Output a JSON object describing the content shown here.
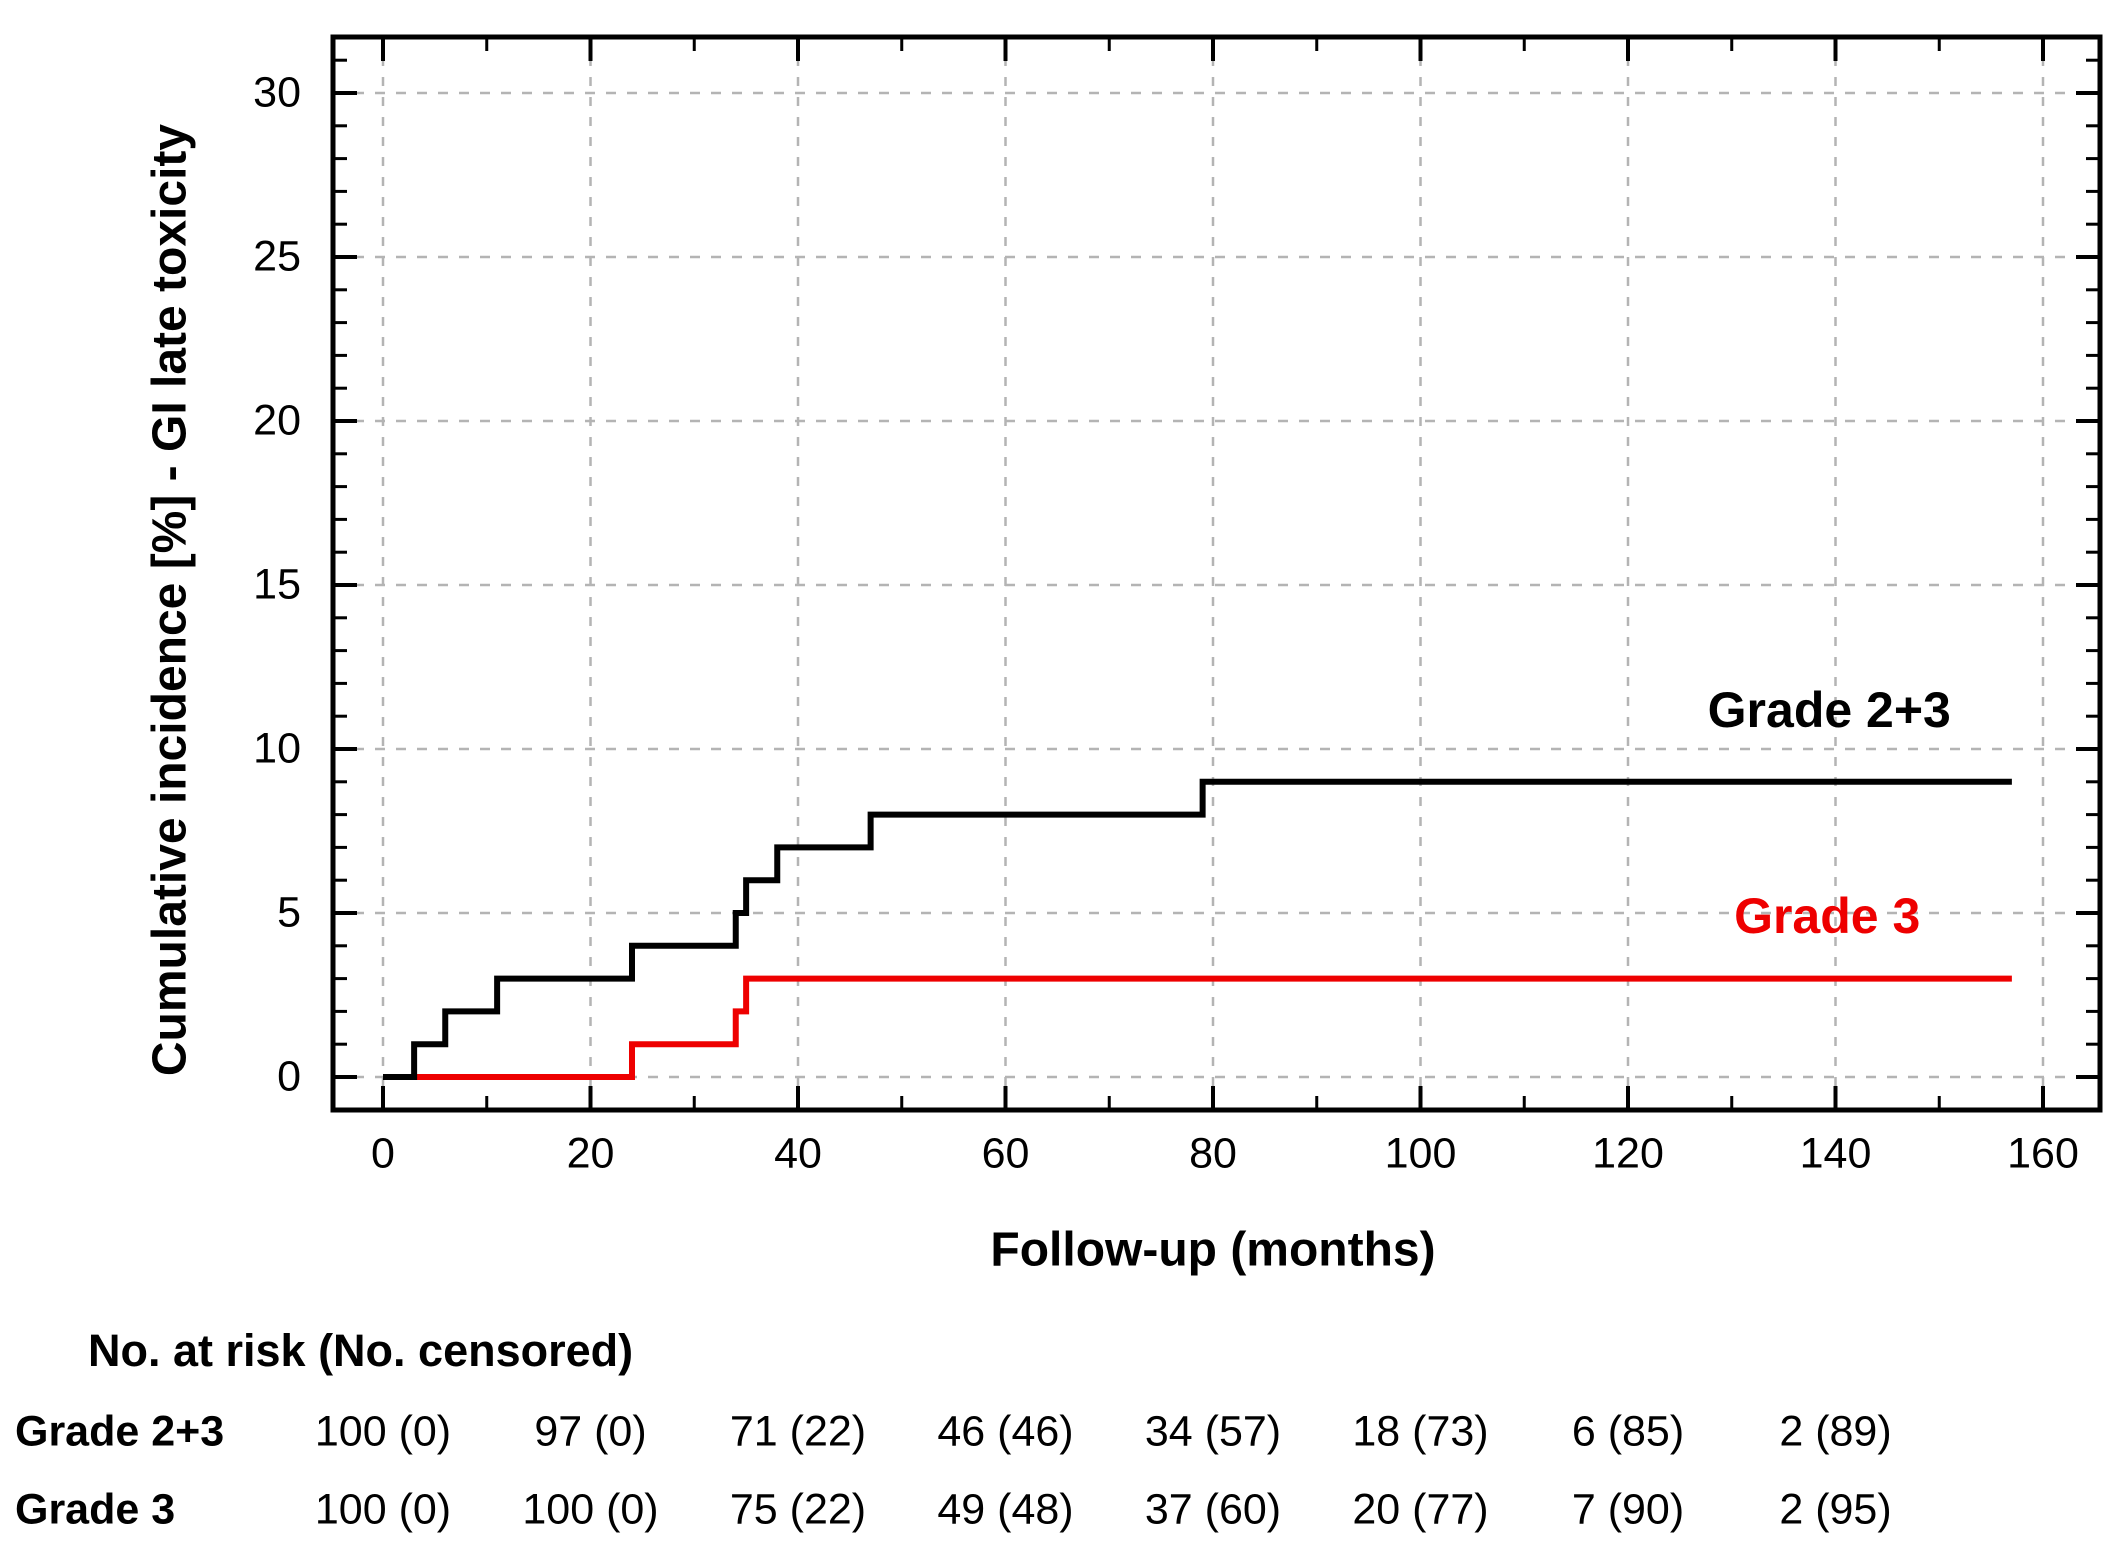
{
  "chart_data": {
    "type": "line",
    "subtype": "step-function-cumulative-incidence",
    "title": "",
    "xlabel": "Follow-up (months)",
    "ylabel": "Cumulative incidence [%] - GI late toxicity",
    "xlim": [
      -4.8,
      165.5
    ],
    "ylim": [
      -1.0,
      31.7
    ],
    "x_major_ticks": [
      0,
      20,
      40,
      60,
      80,
      100,
      120,
      140,
      160
    ],
    "x_minor_ticks": [
      10,
      30,
      50,
      70,
      90,
      110,
      130,
      150
    ],
    "y_major_ticks": [
      0,
      5,
      10,
      15,
      20,
      25,
      30
    ],
    "y_minor_step": 1,
    "grid": "major-dashed-both-axes",
    "grid_color": "#b4b4b4",
    "frame_color": "#000000",
    "legend_position": "labels-inside-plot-right",
    "series": [
      {
        "name": "Grade 2+3",
        "color": "#000000",
        "start": [
          0,
          0
        ],
        "events": [
          [
            3,
            1
          ],
          [
            6,
            2
          ],
          [
            11,
            3
          ],
          [
            24,
            4
          ],
          [
            34,
            5
          ],
          [
            35,
            6
          ],
          [
            38,
            7
          ],
          [
            47,
            8
          ],
          [
            79,
            9
          ]
        ],
        "end_x": 157,
        "final_value": 9,
        "label_pos": {
          "x": 139.4,
          "y": 11.2
        }
      },
      {
        "name": "Grade 3",
        "color": "#ee0000",
        "start": [
          0,
          0
        ],
        "events": [
          [
            24,
            1
          ],
          [
            34,
            2
          ],
          [
            35,
            3
          ]
        ],
        "end_x": 157,
        "final_value": 3,
        "label_pos": {
          "x": 139.2,
          "y": 4.9
        }
      }
    ],
    "risk_table": {
      "header": "No. at risk (No. censored)",
      "time_points": [
        0,
        20,
        40,
        60,
        80,
        100,
        120,
        140
      ],
      "rows": [
        {
          "label": "Grade 2+3",
          "values": [
            "100 (0)",
            "97 (0)",
            "71 (22)",
            "46 (46)",
            "34 (57)",
            "18 (73)",
            "6 (85)",
            "2 (89)"
          ]
        },
        {
          "label": "Grade 3",
          "values": [
            "100 (0)",
            "100 (0)",
            "75 (22)",
            "49 (48)",
            "37 (60)",
            "20 (77)",
            "7 (90)",
            "2 (95)"
          ]
        }
      ]
    }
  }
}
